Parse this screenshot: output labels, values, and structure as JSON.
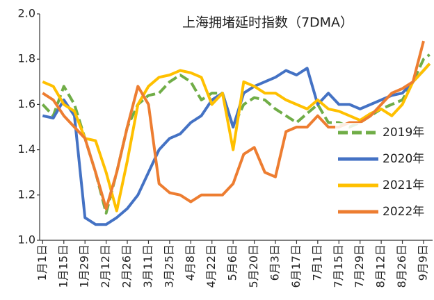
{
  "chart_data": {
    "type": "line",
    "title": "上海拥堵延时指数（7DMA）",
    "x": [
      0,
      7,
      14,
      21,
      28,
      35,
      42,
      49,
      56,
      63,
      70,
      77,
      84,
      91,
      98,
      105,
      112,
      119,
      126,
      133,
      140,
      147,
      154,
      161,
      168,
      175,
      182,
      189,
      196,
      203,
      210,
      217,
      224,
      231,
      238,
      245,
      252,
      256
    ],
    "xlim": [
      -2,
      258
    ],
    "xticks": [
      {
        "value": 0,
        "label": "1月1日"
      },
      {
        "value": 14,
        "label": "1月15日"
      },
      {
        "value": 28,
        "label": "1月29日"
      },
      {
        "value": 42,
        "label": "2月12日"
      },
      {
        "value": 56,
        "label": "2月26日"
      },
      {
        "value": 70,
        "label": "3月11日"
      },
      {
        "value": 84,
        "label": "3月25日"
      },
      {
        "value": 98,
        "label": "4月8日"
      },
      {
        "value": 112,
        "label": "4月22日"
      },
      {
        "value": 126,
        "label": "5月6日"
      },
      {
        "value": 140,
        "label": "5月20日"
      },
      {
        "value": 154,
        "label": "6月3日"
      },
      {
        "value": 168,
        "label": "6月17日"
      },
      {
        "value": 182,
        "label": "7月1日"
      },
      {
        "value": 196,
        "label": "7月15日"
      },
      {
        "value": 210,
        "label": "7月29日"
      },
      {
        "value": 224,
        "label": "8月12日"
      },
      {
        "value": 238,
        "label": "8月26日"
      },
      {
        "value": 252,
        "label": "9月9日"
      }
    ],
    "ylim": [
      1.0,
      2.0
    ],
    "yticks": [
      {
        "value": 1.0,
        "label": "1.0"
      },
      1.2,
      1.4,
      1.6,
      1.8,
      {
        "value": 2.0,
        "label": "2.0"
      }
    ],
    "grid": false,
    "legend": "right",
    "series": [
      {
        "name": "2019年",
        "color": "#70ad47",
        "dashed": true,
        "values": [
          1.6,
          1.55,
          1.68,
          1.6,
          1.45,
          1.3,
          1.12,
          1.3,
          1.5,
          1.6,
          1.64,
          1.65,
          1.7,
          1.73,
          1.7,
          1.62,
          1.65,
          1.65,
          1.5,
          1.6,
          1.63,
          1.62,
          1.58,
          1.55,
          1.52,
          1.56,
          1.6,
          1.52,
          1.52,
          1.5,
          1.52,
          1.55,
          1.58,
          1.6,
          1.62,
          1.7,
          1.8,
          1.82
        ]
      },
      {
        "name": "2020年",
        "color": "#4472c4",
        "dashed": false,
        "values": [
          1.55,
          1.54,
          1.62,
          1.55,
          1.1,
          1.07,
          1.07,
          1.1,
          1.14,
          1.2,
          1.3,
          1.4,
          1.45,
          1.47,
          1.52,
          1.55,
          1.62,
          1.65,
          1.5,
          1.65,
          1.68,
          1.7,
          1.72,
          1.75,
          1.73,
          1.76,
          1.6,
          1.65,
          1.6,
          1.6,
          1.58,
          1.6,
          1.62,
          1.64,
          1.65,
          1.7,
          1.75,
          1.78
        ]
      },
      {
        "name": "2021年",
        "color": "#ffc000",
        "dashed": false,
        "values": [
          1.7,
          1.68,
          1.6,
          1.57,
          1.45,
          1.44,
          1.3,
          1.13,
          1.35,
          1.6,
          1.68,
          1.72,
          1.73,
          1.75,
          1.74,
          1.72,
          1.6,
          1.65,
          1.4,
          1.7,
          1.68,
          1.65,
          1.65,
          1.62,
          1.6,
          1.58,
          1.62,
          1.58,
          1.57,
          1.55,
          1.53,
          1.56,
          1.58,
          1.55,
          1.6,
          1.7,
          1.75,
          1.78
        ]
      },
      {
        "name": "2022年",
        "color": "#ed7d31",
        "dashed": false,
        "values": [
          1.65,
          1.62,
          1.55,
          1.5,
          1.45,
          1.3,
          1.14,
          1.3,
          1.5,
          1.68,
          1.6,
          1.25,
          1.21,
          1.2,
          1.17,
          1.2,
          1.2,
          1.2,
          1.25,
          1.38,
          1.41,
          1.3,
          1.28,
          1.48,
          1.5,
          1.5,
          1.55,
          1.5,
          1.5,
          1.52,
          1.52,
          1.55,
          1.6,
          1.65,
          1.67,
          1.7,
          1.88,
          null
        ]
      }
    ]
  }
}
